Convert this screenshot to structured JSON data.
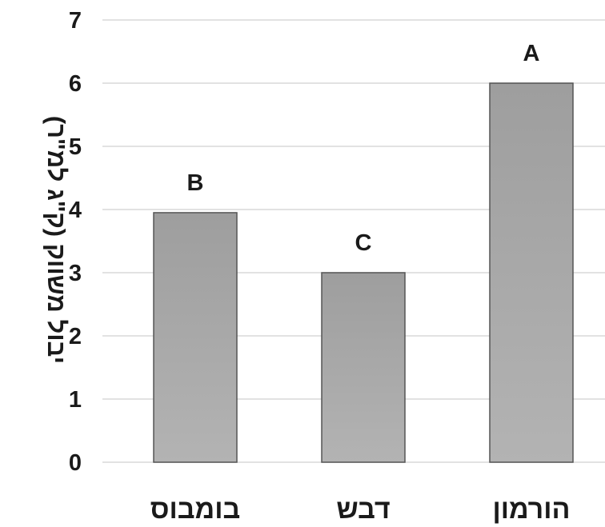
{
  "chart_data": {
    "type": "bar",
    "categories": [
      "בומבוס",
      "דבש",
      "הורמון"
    ],
    "values": [
      3.95,
      3.0,
      6.0
    ],
    "data_labels": [
      "B",
      "C",
      "A"
    ],
    "title": "",
    "xlabel": "",
    "ylabel": "יבול משווק (ק\"ג למ\"ר)",
    "ylim": [
      0,
      7
    ],
    "yticks": [
      0,
      1,
      2,
      3,
      4,
      5,
      6,
      7
    ],
    "grid": true,
    "legend": "none",
    "bar_color": "#a6a6a6",
    "bar_edge_color": "#555555",
    "grid_color": "#d9d9d9"
  }
}
